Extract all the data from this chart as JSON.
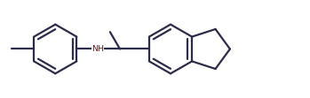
{
  "bg_color": "#ffffff",
  "line_color": "#2b2b4a",
  "nh_color": "#8B0000",
  "lw": 1.6,
  "figsize": [
    3.49,
    1.11
  ],
  "dpi": 100,
  "xlim": [
    0.0,
    3.5
  ],
  "ylim": [
    0.0,
    1.1
  ]
}
